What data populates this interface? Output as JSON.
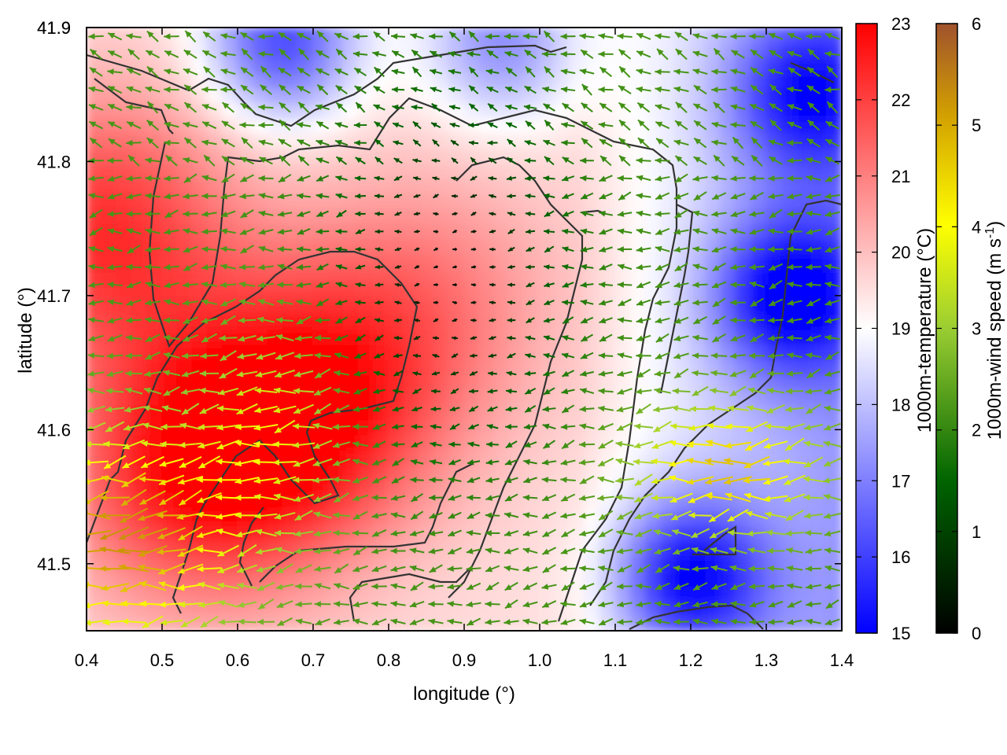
{
  "chart_data": {
    "type": "heatmap",
    "xlabel": "longitude (°)",
    "ylabel": "latitude (°)",
    "xlim": [
      0.4,
      1.4
    ],
    "ylim": [
      41.45,
      41.9
    ],
    "xticks": [
      "0.4",
      "0.5",
      "0.6",
      "0.7",
      "0.8",
      "0.9",
      "1.0",
      "1.1",
      "1.2",
      "1.3",
      "1.4"
    ],
    "yticks": [
      "41.5",
      "41.6",
      "41.7",
      "41.8",
      "41.9"
    ],
    "grid": false,
    "temperature_colorbar": {
      "label": "1000m-temperature (°C)",
      "range": [
        15,
        23
      ],
      "ticks": [
        "15",
        "16",
        "17",
        "18",
        "19",
        "20",
        "21",
        "22",
        "23"
      ],
      "colors": [
        "#0000ff",
        "#ffffff",
        "#ff0000"
      ]
    },
    "wind_colorbar": {
      "label_main": "1000m-wind speed (m s",
      "label_sup": "-1",
      "label_end": ")",
      "range": [
        0,
        6
      ],
      "ticks": [
        "0",
        "1",
        "2",
        "3",
        "4",
        "5",
        "6"
      ],
      "colors": [
        "#000000",
        "#006400",
        "#9acd32",
        "#ffff00",
        "#d2a000",
        "#a0522d"
      ]
    },
    "temperature_field_notes": "warm region (20–23 °C) west and centre, cool region (15–18 °C) north-east and south-east",
    "warm_centers": [
      {
        "lon": 0.55,
        "lat": 41.57,
        "temp": 22.8
      },
      {
        "lon": 0.7,
        "lat": 41.62,
        "temp": 22.5
      },
      {
        "lon": 0.42,
        "lat": 41.75,
        "temp": 22.5
      },
      {
        "lon": 0.85,
        "lat": 41.7,
        "temp": 21.0
      }
    ],
    "cool_centers": [
      {
        "lon": 0.66,
        "lat": 41.89,
        "temp": 15.8
      },
      {
        "lon": 0.95,
        "lat": 41.89,
        "temp": 17.0
      },
      {
        "lon": 1.33,
        "lat": 41.7,
        "temp": 15.8
      },
      {
        "lon": 1.2,
        "lat": 41.49,
        "temp": 15.5
      },
      {
        "lon": 1.35,
        "lat": 41.85,
        "temp": 16.5
      }
    ],
    "wind_field_notes": "predominantly easterly winds (arrows pointing west); strong 4–6 m/s in south-west and south-east, calm < 1 m/s in centre"
  }
}
